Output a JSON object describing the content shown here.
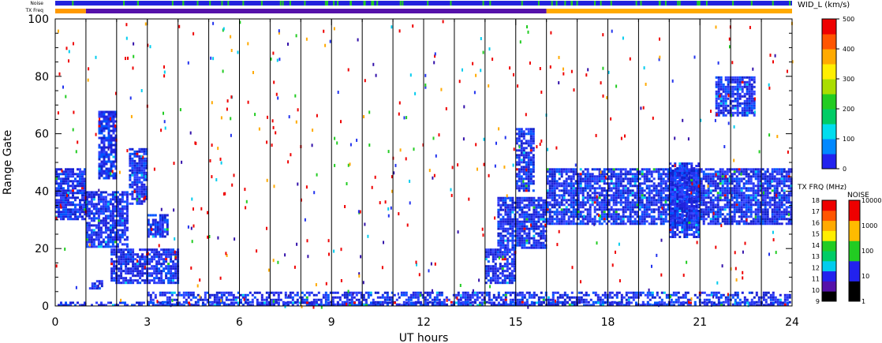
{
  "chart_data": {
    "type": "heatmap",
    "xlabel": "UT hours",
    "ylabel": "Range Gate",
    "xlim": [
      0,
      24
    ],
    "ylim": [
      0,
      100
    ],
    "x_ticks": [
      0,
      3,
      6,
      9,
      12,
      15,
      18,
      21,
      24
    ],
    "y_ticks": [
      0,
      20,
      40,
      60,
      80,
      100
    ],
    "status_bars": [
      {
        "label": "Noise",
        "dominant_color": "#2222dd",
        "accent_color": "#22cc22"
      },
      {
        "label": "TX Freq",
        "segments": [
          {
            "from": 0,
            "to": 1,
            "color": "#ff9900"
          },
          {
            "from": 1,
            "to": 16,
            "color": "#5511aa"
          },
          {
            "from": 16,
            "to": 24,
            "color": "#ffaa00"
          }
        ]
      }
    ],
    "colorbar_width": {
      "title": "WID_L (km/s)",
      "ticks": [
        0,
        100,
        200,
        300,
        400,
        500
      ],
      "range": [
        0,
        500
      ],
      "colors": [
        "#2222ee",
        "#0088ff",
        "#00ddee",
        "#00cc66",
        "#22cc22",
        "#aadd00",
        "#ffee00",
        "#ffaa00",
        "#ff5500",
        "#ee0000"
      ]
    },
    "colorbar_txfreq": {
      "title": "TX FRQ (MHz)",
      "ticks": [
        9,
        10,
        11,
        12,
        13,
        14,
        15,
        16,
        17,
        18
      ],
      "colors": [
        "#000000",
        "#5511aa",
        "#2222ee",
        "#00ccee",
        "#00cc66",
        "#22cc22",
        "#ffee00",
        "#ffaa00",
        "#ff5500",
        "#ee0000"
      ]
    },
    "colorbar_noise": {
      "title": "NOISE",
      "ticks": [
        "1",
        "10",
        "100",
        "1000",
        "10000"
      ],
      "colors": [
        "#000000",
        "#2222ee",
        "#22cc22",
        "#ffbb00",
        "#ee0000"
      ]
    },
    "hour_lines": [
      1,
      2,
      3,
      4,
      5,
      6,
      7,
      8,
      9,
      10,
      11,
      12,
      13,
      14,
      15,
      16,
      17,
      18,
      19,
      20,
      21,
      22,
      23
    ],
    "echo_regions": [
      {
        "x0": 0.0,
        "x1": 1.0,
        "y0": 30,
        "y1": 48,
        "color": "#2233ee"
      },
      {
        "x0": 1.0,
        "x1": 2.4,
        "y0": 20,
        "y1": 40,
        "color": "#2233ee"
      },
      {
        "x0": 1.4,
        "x1": 2.0,
        "y0": 44,
        "y1": 68,
        "color": "#2233ee"
      },
      {
        "x0": 2.4,
        "x1": 3.0,
        "y0": 35,
        "y1": 55,
        "color": "#2233ee"
      },
      {
        "x0": 1.8,
        "x1": 4.0,
        "y0": 8,
        "y1": 20,
        "color": "#2233ee"
      },
      {
        "x0": 3.0,
        "x1": 3.7,
        "y0": 24,
        "y1": 32,
        "color": "#2233ee"
      },
      {
        "x0": 1.1,
        "x1": 1.6,
        "y0": 6,
        "y1": 9,
        "color": "#2233ee"
      },
      {
        "x0": 14.4,
        "x1": 16.0,
        "y0": 20,
        "y1": 38,
        "color": "#2233ee"
      },
      {
        "x0": 14.0,
        "x1": 15.0,
        "y0": 8,
        "y1": 20,
        "color": "#2233ee"
      },
      {
        "x0": 15.0,
        "x1": 15.6,
        "y0": 40,
        "y1": 62,
        "color": "#2233ee"
      },
      {
        "x0": 16.0,
        "x1": 24.0,
        "y0": 28,
        "y1": 48,
        "color": "#2233ee"
      },
      {
        "x0": 20.0,
        "x1": 21.0,
        "y0": 24,
        "y1": 50,
        "color": "#2233ee"
      },
      {
        "x0": 21.5,
        "x1": 22.8,
        "y0": 66,
        "y1": 80,
        "color": "#2233ee"
      },
      {
        "x0": 3.0,
        "x1": 24.0,
        "y0": 0,
        "y1": 5,
        "color": "#2233ee"
      },
      {
        "x0": 0.0,
        "x1": 24.0,
        "y0": 0,
        "y1": 1.5,
        "color": "#2233ee"
      }
    ]
  }
}
